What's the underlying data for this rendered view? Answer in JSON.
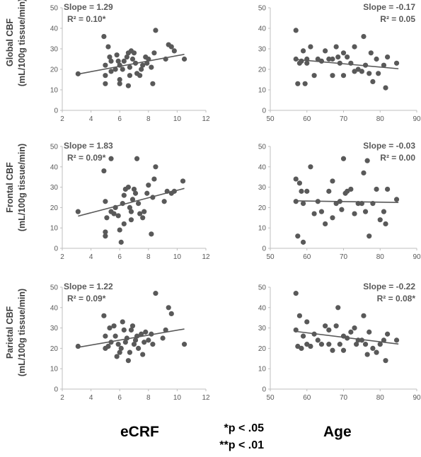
{
  "columns": [
    "eCRF",
    "Age"
  ],
  "rows": [
    {
      "label_line1": "Global CBF",
      "label_line2": "(mL/100g tissue/min)"
    },
    {
      "label_line1": "Frontal CBF",
      "label_line2": "(mL/100g tissue/min)"
    },
    {
      "label_line1": "Parietal CBF",
      "label_line2": "(mL/100g tissue/min)"
    }
  ],
  "footnotes": [
    "*p < .05",
    "**p < .01"
  ],
  "colors": {
    "points": "#595959",
    "trend": "#595959",
    "axis": "#bfbfbf"
  },
  "chart_data": [
    {
      "type": "scatter",
      "row": 0,
      "col": 0,
      "xlim": [
        2,
        12
      ],
      "ylim": [
        0,
        50
      ],
      "xticks": [
        2,
        4,
        6,
        8,
        10,
        12
      ],
      "yticks": [
        0,
        10,
        20,
        30,
        40,
        50
      ],
      "slope_label": "Slope = 1.29",
      "r2_label": "R² = 0.10*",
      "trend": {
        "x": [
          3.1,
          10.5
        ],
        "y": [
          17.7,
          27.3
        ]
      },
      "points": [
        [
          3.1,
          17.8
        ],
        [
          4.9,
          36
        ],
        [
          5,
          22
        ],
        [
          5,
          17
        ],
        [
          5,
          13
        ],
        [
          5.2,
          31
        ],
        [
          5.3,
          26
        ],
        [
          5.4,
          24
        ],
        [
          5.4,
          19
        ],
        [
          5.7,
          20
        ],
        [
          5.8,
          27
        ],
        [
          5.9,
          24
        ],
        [
          6,
          22
        ],
        [
          6,
          15
        ],
        [
          6,
          13
        ],
        [
          6.2,
          20
        ],
        [
          6.3,
          24
        ],
        [
          6.5,
          26
        ],
        [
          6.6,
          28
        ],
        [
          6.6,
          12
        ],
        [
          6.7,
          21
        ],
        [
          6.7,
          17
        ],
        [
          6.8,
          29
        ],
        [
          6.9,
          25
        ],
        [
          7.0,
          28
        ],
        [
          7.1,
          23
        ],
        [
          7.2,
          18
        ],
        [
          7.4,
          17
        ],
        [
          7.5,
          20
        ],
        [
          7.6,
          22
        ],
        [
          7.8,
          26
        ],
        [
          7.9,
          23
        ],
        [
          8.0,
          25
        ],
        [
          8.2,
          21
        ],
        [
          8.3,
          13
        ],
        [
          8.4,
          28
        ],
        [
          8.5,
          39
        ],
        [
          9.2,
          25
        ],
        [
          9.4,
          32
        ],
        [
          9.6,
          31
        ],
        [
          9.8,
          29
        ],
        [
          10.5,
          25
        ]
      ]
    },
    {
      "type": "scatter",
      "row": 0,
      "col": 1,
      "xlim": [
        50,
        90
      ],
      "ylim": [
        0,
        50
      ],
      "xticks": [
        50,
        60,
        70,
        80,
        90
      ],
      "yticks": [
        0,
        10,
        20,
        30,
        40,
        50
      ],
      "slope_label": "Slope = -0.17",
      "r2_label": "R² = 0.05",
      "trend": {
        "x": [
          57,
          85
        ],
        "y": [
          24.8,
          20.3
        ]
      },
      "points": [
        [
          57,
          39
        ],
        [
          57,
          25
        ],
        [
          57.5,
          13
        ],
        [
          58,
          23
        ],
        [
          58.5,
          24
        ],
        [
          59,
          29
        ],
        [
          59.5,
          13
        ],
        [
          60,
          25
        ],
        [
          60,
          23
        ],
        [
          61,
          31
        ],
        [
          62,
          17
        ],
        [
          63,
          25
        ],
        [
          64,
          24
        ],
        [
          65,
          29
        ],
        [
          66,
          25
        ],
        [
          67,
          25
        ],
        [
          67,
          17
        ],
        [
          68,
          31
        ],
        [
          68.5,
          26
        ],
        [
          69,
          23
        ],
        [
          70,
          28
        ],
        [
          70,
          17
        ],
        [
          71,
          26
        ],
        [
          72,
          23
        ],
        [
          73,
          31
        ],
        [
          73,
          19
        ],
        [
          74,
          20
        ],
        [
          75,
          19
        ],
        [
          75.5,
          36
        ],
        [
          76,
          22
        ],
        [
          77,
          18
        ],
        [
          77.5,
          28
        ],
        [
          78,
          14
        ],
        [
          79,
          25
        ],
        [
          79.5,
          18
        ],
        [
          81,
          22
        ],
        [
          81.5,
          11
        ],
        [
          82,
          26
        ],
        [
          84.5,
          23
        ]
      ]
    },
    {
      "type": "scatter",
      "row": 1,
      "col": 0,
      "xlim": [
        2,
        12
      ],
      "ylim": [
        0,
        50
      ],
      "xticks": [
        2,
        4,
        6,
        8,
        10,
        12
      ],
      "yticks": [
        0,
        10,
        20,
        30,
        40,
        50
      ],
      "slope_label": "Slope = 1.83",
      "r2_label": "R² = 0.09*",
      "trend": {
        "x": [
          3.1,
          10.5
        ],
        "y": [
          15.8,
          29.4
        ]
      },
      "points": [
        [
          3.1,
          18
        ],
        [
          4.9,
          38
        ],
        [
          5,
          8
        ],
        [
          5,
          6
        ],
        [
          5,
          23
        ],
        [
          5.1,
          15
        ],
        [
          5.4,
          44
        ],
        [
          5.4,
          18
        ],
        [
          5.6,
          17
        ],
        [
          5.7,
          20
        ],
        [
          5.9,
          16
        ],
        [
          6,
          9
        ],
        [
          6.1,
          3
        ],
        [
          6.2,
          22
        ],
        [
          6.3,
          26
        ],
        [
          6.3,
          12
        ],
        [
          6.4,
          29
        ],
        [
          6.6,
          30
        ],
        [
          6.7,
          20
        ],
        [
          6.8,
          14
        ],
        [
          6.8,
          18
        ],
        [
          6.9,
          24
        ],
        [
          7.0,
          29
        ],
        [
          7.1,
          27
        ],
        [
          7.2,
          44
        ],
        [
          7.3,
          22
        ],
        [
          7.4,
          17
        ],
        [
          7.6,
          15
        ],
        [
          7.7,
          18
        ],
        [
          7.9,
          27
        ],
        [
          8.0,
          31
        ],
        [
          8.2,
          7
        ],
        [
          8.3,
          25
        ],
        [
          8.4,
          34
        ],
        [
          8.5,
          40
        ],
        [
          9.1,
          23
        ],
        [
          9.3,
          28
        ],
        [
          9.6,
          27
        ],
        [
          9.8,
          28
        ],
        [
          10.4,
          33
        ]
      ]
    },
    {
      "type": "scatter",
      "row": 1,
      "col": 1,
      "xlim": [
        50,
        90
      ],
      "ylim": [
        0,
        50
      ],
      "xticks": [
        50,
        60,
        70,
        80,
        90
      ],
      "yticks": [
        0,
        10,
        20,
        30,
        40,
        50
      ],
      "slope_label": "Slope = -0.03",
      "r2_label": "R² = 0.00",
      "trend": {
        "x": [
          57,
          85
        ],
        "y": [
          23.3,
          22.5
        ]
      },
      "points": [
        [
          57,
          34
        ],
        [
          57,
          23
        ],
        [
          57.5,
          6
        ],
        [
          58,
          32
        ],
        [
          58.5,
          28
        ],
        [
          59,
          22
        ],
        [
          59,
          3
        ],
        [
          60,
          28
        ],
        [
          61,
          40
        ],
        [
          62,
          17
        ],
        [
          63,
          23
        ],
        [
          64,
          18
        ],
        [
          65,
          12
        ],
        [
          66,
          28
        ],
        [
          67,
          33
        ],
        [
          67,
          15
        ],
        [
          68,
          22
        ],
        [
          69,
          23
        ],
        [
          69.5,
          19
        ],
        [
          70,
          44
        ],
        [
          70.5,
          27
        ],
        [
          71,
          28
        ],
        [
          72,
          29
        ],
        [
          73,
          17
        ],
        [
          74,
          22
        ],
        [
          75,
          22
        ],
        [
          75.5,
          37
        ],
        [
          76,
          18
        ],
        [
          76.5,
          43
        ],
        [
          77,
          6
        ],
        [
          78,
          22
        ],
        [
          79,
          29
        ],
        [
          80,
          14
        ],
        [
          81,
          18
        ],
        [
          81.5,
          12
        ],
        [
          82,
          29
        ],
        [
          84.5,
          24
        ]
      ]
    },
    {
      "type": "scatter",
      "row": 2,
      "col": 0,
      "xlim": [
        2,
        12
      ],
      "ylim": [
        0,
        50
      ],
      "xticks": [
        2,
        4,
        6,
        8,
        10,
        12
      ],
      "yticks": [
        0,
        10,
        20,
        30,
        40,
        50
      ],
      "slope_label": "Slope = 1.22",
      "r2_label": "R² = 0.09*",
      "trend": {
        "x": [
          3.1,
          10.5
        ],
        "y": [
          20.5,
          29.5
        ]
      },
      "points": [
        [
          3.1,
          21
        ],
        [
          4.9,
          36
        ],
        [
          5,
          20
        ],
        [
          5,
          26
        ],
        [
          5.2,
          21
        ],
        [
          5.3,
          30
        ],
        [
          5.4,
          23
        ],
        [
          5.6,
          31
        ],
        [
          5.7,
          26
        ],
        [
          5.8,
          16
        ],
        [
          5.9,
          22
        ],
        [
          6,
          18
        ],
        [
          6.1,
          20
        ],
        [
          6.2,
          33
        ],
        [
          6.3,
          29
        ],
        [
          6.4,
          23
        ],
        [
          6.5,
          25
        ],
        [
          6.6,
          14
        ],
        [
          6.7,
          18
        ],
        [
          6.8,
          29
        ],
        [
          6.9,
          31
        ],
        [
          7.0,
          22
        ],
        [
          7.1,
          24
        ],
        [
          7.2,
          26
        ],
        [
          7.3,
          20
        ],
        [
          7.5,
          27
        ],
        [
          7.6,
          17
        ],
        [
          7.7,
          23
        ],
        [
          7.8,
          28
        ],
        [
          8.0,
          24
        ],
        [
          8.2,
          27
        ],
        [
          8.3,
          22
        ],
        [
          8.5,
          47
        ],
        [
          9.0,
          25
        ],
        [
          9.2,
          29
        ],
        [
          9.4,
          40
        ],
        [
          9.6,
          37
        ],
        [
          10.5,
          22
        ]
      ]
    },
    {
      "type": "scatter",
      "row": 2,
      "col": 1,
      "xlim": [
        50,
        90
      ],
      "ylim": [
        0,
        50
      ],
      "xticks": [
        50,
        60,
        70,
        80,
        90
      ],
      "yticks": [
        0,
        10,
        20,
        30,
        40,
        50
      ],
      "slope_label": "Slope = -0.22",
      "r2_label": "R² = 0.08*",
      "trend": {
        "x": [
          57,
          85
        ],
        "y": [
          28.3,
          22.1
        ]
      },
      "points": [
        [
          57,
          47
        ],
        [
          57,
          29
        ],
        [
          57.5,
          21
        ],
        [
          58,
          36
        ],
        [
          58.5,
          20
        ],
        [
          59,
          26
        ],
        [
          60,
          33
        ],
        [
          60,
          22
        ],
        [
          61,
          21
        ],
        [
          62,
          27
        ],
        [
          63,
          24
        ],
        [
          64,
          22
        ],
        [
          65,
          31
        ],
        [
          66,
          29
        ],
        [
          66,
          22
        ],
        [
          67,
          19
        ],
        [
          68,
          31
        ],
        [
          68.5,
          40
        ],
        [
          69,
          22
        ],
        [
          70,
          26
        ],
        [
          70,
          19
        ],
        [
          71,
          25
        ],
        [
          72,
          28
        ],
        [
          73,
          30
        ],
        [
          73.5,
          22
        ],
        [
          74,
          24
        ],
        [
          75,
          24
        ],
        [
          75.5,
          36
        ],
        [
          76,
          22
        ],
        [
          76.5,
          17
        ],
        [
          77,
          28
        ],
        [
          78,
          20
        ],
        [
          79,
          18
        ],
        [
          80,
          22
        ],
        [
          81,
          24
        ],
        [
          81.5,
          14
        ],
        [
          82,
          27
        ],
        [
          84.5,
          24
        ]
      ]
    }
  ]
}
